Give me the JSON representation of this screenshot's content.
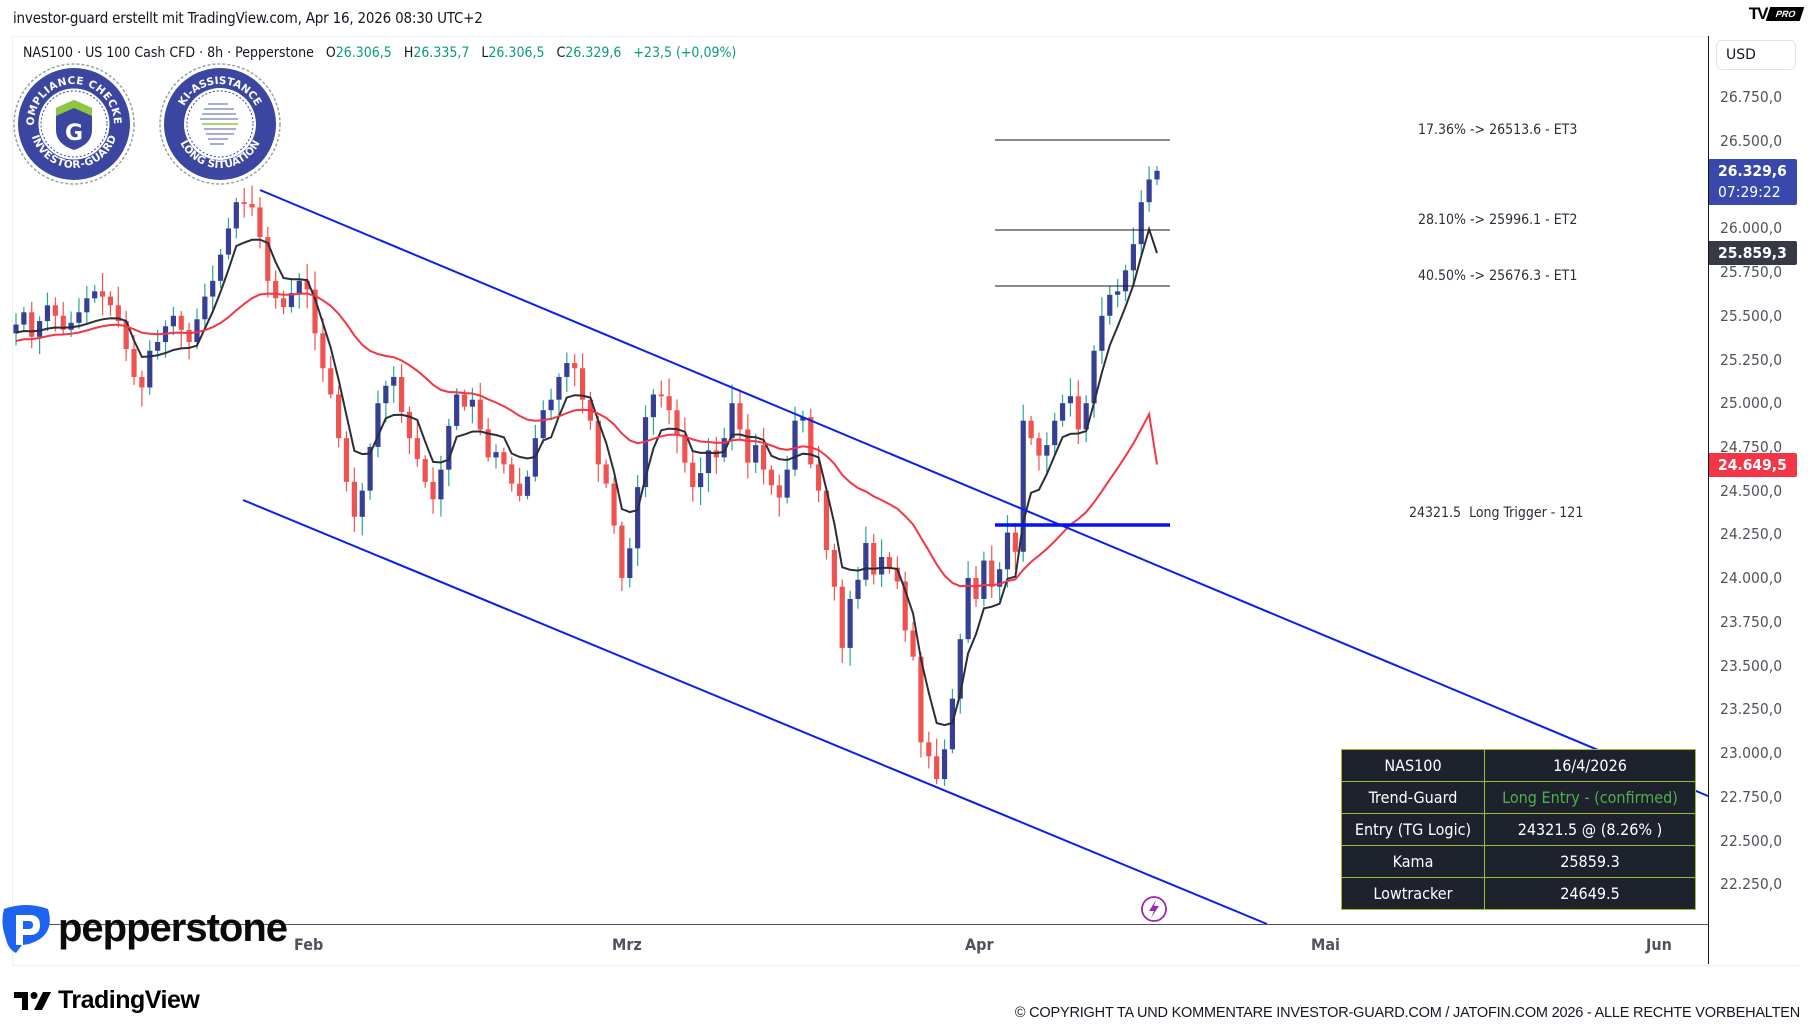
{
  "header": {
    "caption": "investor-guard erstellt mit TradingView.com, Apr 16, 2026 08:30 UTC+2",
    "brand_mark": "TV",
    "brand_badge": "PRO"
  },
  "legend": {
    "symbol": "NAS100 · US 100 Cash CFD · 8h · Pepperstone",
    "open_label": "O",
    "open": "26.306,5",
    "high_label": "H",
    "high": "26.335,7",
    "low_label": "L",
    "low": "26.306,5",
    "close_label": "C",
    "close": "26.329,6",
    "change": "+23,5 (+0,09%)"
  },
  "badges": [
    {
      "top_text": "COMPLIANCE CHECKED",
      "bottom_text": "INVESTOR-GUARD",
      "center": "G"
    },
    {
      "top_text": "KI-ASSISTANCE",
      "bottom_text": "LONG SITUATION",
      "center": "head"
    }
  ],
  "price_axis": {
    "currency_button": "USD",
    "ticks": [
      "26.750,0",
      "26.500,0",
      "26.000,0",
      "25.750,0",
      "25.500,0",
      "25.250,0",
      "25.000,0",
      "24.750,0",
      "24.500,0",
      "24.250,0",
      "24.000,0",
      "23.750,0",
      "23.500,0",
      "23.250,0",
      "23.000,0",
      "22.750,0",
      "22.500,0",
      "22.250,0"
    ],
    "current_price_tag": {
      "price": "26.329,6",
      "countdown": "07:29:22",
      "color": "#3949ab"
    },
    "kama_tag": {
      "price": "25.859,3",
      "color": "#363a45"
    },
    "lowtracker_tag": {
      "price": "24.649,5",
      "color": "#f23645"
    }
  },
  "time_axis": {
    "labels": [
      "Feb",
      "Mrz",
      "Apr",
      "Mai",
      "Jun"
    ]
  },
  "annotations": {
    "et3": "17.36% -> 26513.6 - ET3",
    "et2": "28.10% -> 25996.1 - ET2",
    "et1": "40.50% -> 25676.3 - ET1",
    "trigger": "24321.5  Long Trigger - 121"
  },
  "info_table": {
    "rows": [
      {
        "label": "NAS100",
        "value": "16/4/2026"
      },
      {
        "label": "Trend-Guard",
        "value": "Long Entry - (confirmed)"
      },
      {
        "label": "Entry (TG Logic)",
        "value": "24321.5 @ (8.26% )"
      },
      {
        "label": "Kama",
        "value": "25859.3"
      },
      {
        "label": "Lowtracker",
        "value": "24649.5"
      }
    ]
  },
  "footer": {
    "broker_logo": "pepperstone",
    "platform_logo": "TradingView",
    "copyright": "© COPYRIGHT TA UND KOMMENTARE INVESTOR-GUARD.COM / JATOFIN.COM 2026 - ALLE RECHTE VORBEHALTEN"
  },
  "colors": {
    "bull": "#363f93",
    "bull_wick": "#26a69a",
    "bear": "#ef5350",
    "kama": "#2a2e39",
    "lowtracker": "#f23645",
    "channel": "#0a1ef0",
    "trigger": "#0011ff"
  },
  "chart_data": {
    "type": "candlestick",
    "title": "NAS100 · US 100 Cash CFD · 8h · Pepperstone",
    "xlabel": "",
    "ylabel": "USD",
    "ylim": [
      22100,
      26900
    ],
    "x_ticks": [
      "Feb",
      "Mrz",
      "Apr",
      "Mai",
      "Jun"
    ],
    "y_ticks": [
      26750,
      26500,
      26250,
      26000,
      25750,
      25500,
      25250,
      25000,
      24750,
      24500,
      24250,
      24000,
      23750,
      23500,
      23250,
      23000,
      22750,
      22500,
      22250
    ],
    "ohlc_last": {
      "open": 26306.5,
      "high": 26335.7,
      "low": 26306.5,
      "close": 26329.6,
      "change": 23.5,
      "change_pct": 0.09
    },
    "candles_close_approx": [
      25450,
      25520,
      25380,
      25470,
      25560,
      25500,
      25420,
      25460,
      25520,
      25600,
      25640,
      25610,
      25560,
      25470,
      25310,
      25150,
      25090,
      25300,
      25350,
      25440,
      25500,
      25420,
      25350,
      25480,
      25610,
      25700,
      25850,
      26000,
      26150,
      26140,
      26120,
      25950,
      25700,
      25600,
      25550,
      25630,
      25700,
      25650,
      25400,
      25200,
      25050,
      24800,
      24550,
      24350,
      24500,
      24750,
      25000,
      25100,
      25150,
      24950,
      24800,
      24680,
      24550,
      24450,
      24620,
      24870,
      25050,
      24980,
      25020,
      24850,
      24690,
      24720,
      24650,
      24540,
      24470,
      24580,
      24800,
      24960,
      25020,
      25150,
      25230,
      25200,
      25020,
      24900,
      24650,
      24540,
      24300,
      24000,
      24170,
      24520,
      24920,
      25050,
      25040,
      24960,
      24820,
      24660,
      24520,
      24600,
      24730,
      24690,
      24800,
      25000,
      24850,
      24660,
      24760,
      24620,
      24530,
      24460,
      24620,
      24900,
      24920,
      24650,
      24500,
      24160,
      23950,
      23600,
      23880,
      23990,
      24200,
      24020,
      24120,
      24060,
      23980,
      23700,
      23550,
      23060,
      22980,
      22850,
      23020,
      23310,
      23650,
      24000,
      23880,
      24100,
      23950,
      24050,
      24260,
      24150,
      24900,
      24800,
      24700,
      24760,
      24900,
      25000,
      25040,
      24850,
      25000,
      25300,
      25500,
      25620,
      25640,
      25760,
      25910,
      26150,
      26280,
      26329.6
    ],
    "series": [
      {
        "name": "Kama",
        "last": 25859.3
      },
      {
        "name": "Lowtracker",
        "last": 24649.5
      }
    ],
    "levels": [
      {
        "name": "ET3",
        "price": 26513.6,
        "pct": 17.36
      },
      {
        "name": "ET2",
        "price": 25996.1,
        "pct": 28.1
      },
      {
        "name": "ET1",
        "price": 25676.3,
        "pct": 40.5
      },
      {
        "name": "Long Trigger - 121",
        "price": 24321.5
      }
    ],
    "channel": {
      "upper": [
        {
          "date": "late Jan",
          "price": 26250
        },
        {
          "date": "Jun",
          "price": 22820
        }
      ],
      "lower": [
        {
          "date": "late Jan",
          "price": 24470
        },
        {
          "date": "mid Apr",
          "price": 22000
        }
      ]
    },
    "grid": false,
    "legend_position": "top-left"
  }
}
